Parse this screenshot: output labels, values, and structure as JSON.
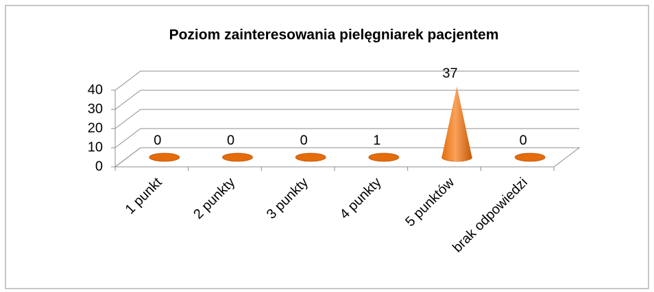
{
  "chart_data": {
    "type": "cone3d",
    "title": "Poziom zainteresowania pielęgniarek pacjentem",
    "categories": [
      "1 punkt",
      "2 punkty",
      "3 punkty",
      "4 punkty",
      "5 punktów",
      "brak odpowiedzi"
    ],
    "values": [
      0,
      0,
      0,
      1,
      37,
      0
    ],
    "color": "#e46c0a",
    "ylim": [
      0,
      40
    ],
    "yticks": [
      0,
      10,
      20,
      30,
      40
    ],
    "grid": true
  }
}
